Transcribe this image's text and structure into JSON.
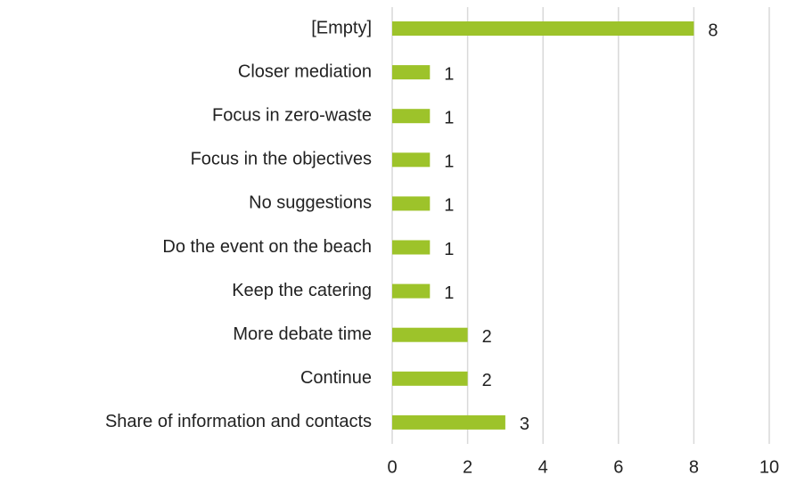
{
  "chart_data": {
    "type": "barh",
    "categories": [
      "[Empty]",
      "Closer mediation",
      "Focus in zero-waste",
      "Focus in the objectives",
      "No suggestions",
      "Do the event on the beach",
      "Keep the catering",
      "More debate time",
      "Continue",
      "Share of information and contacts"
    ],
    "values": [
      8,
      1,
      1,
      1,
      1,
      1,
      1,
      2,
      2,
      3
    ],
    "color": "#9dc32a",
    "xlim": [
      0,
      10
    ],
    "xticks": [
      0,
      2,
      4,
      6,
      8,
      10
    ],
    "grid": true
  }
}
